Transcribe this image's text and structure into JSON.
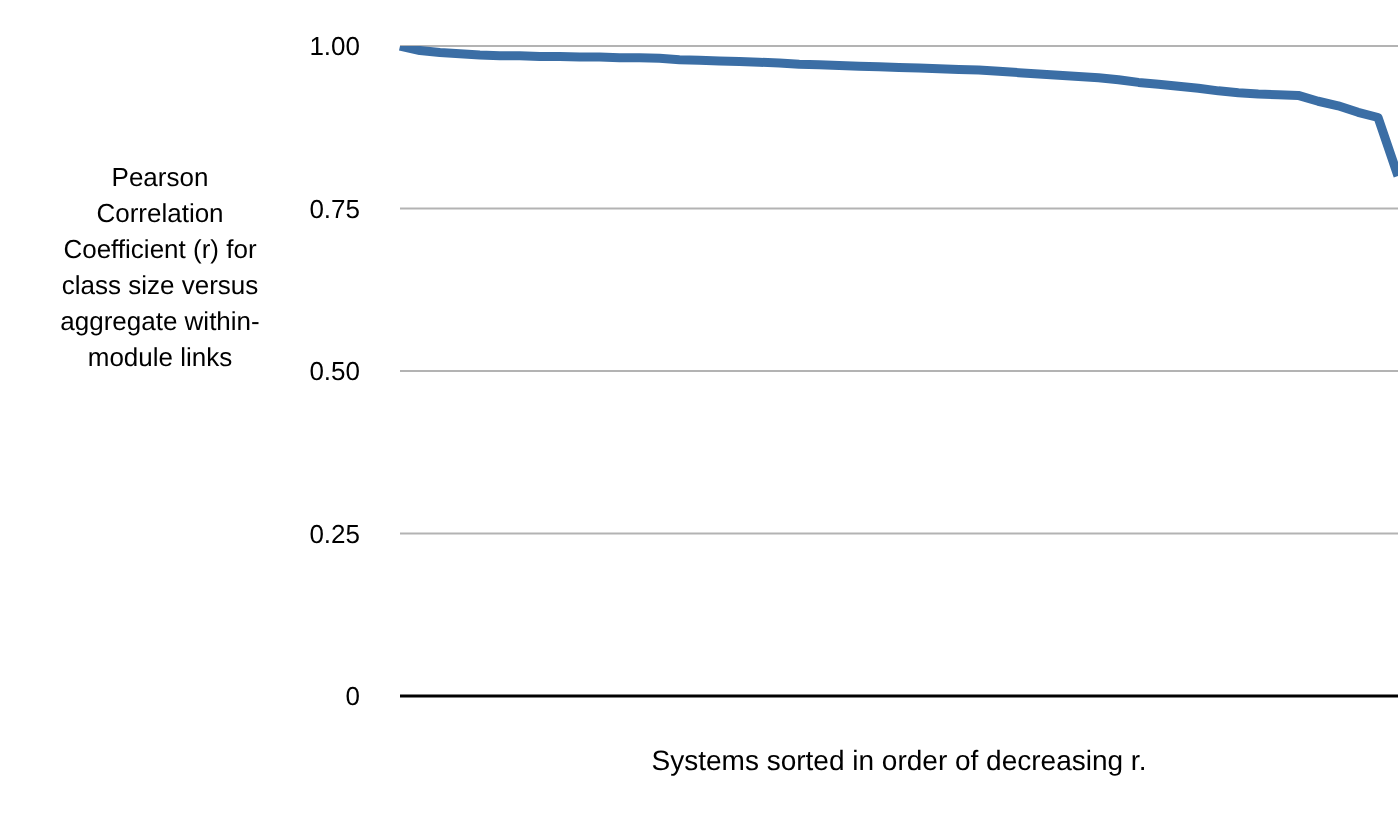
{
  "chart_data": {
    "type": "line",
    "ylabel": "Pearson Correlation Coefficient (r) for class size versus aggregate within-module links",
    "xlabel": "Systems sorted in order of decreasing r.",
    "categories": [
      null,
      null,
      null,
      null,
      null,
      null,
      null,
      null,
      null,
      null,
      null,
      null,
      null,
      null,
      null,
      null,
      null,
      null,
      null,
      null,
      null,
      null,
      null,
      null,
      null,
      null,
      null,
      null,
      null,
      null,
      null,
      null,
      null,
      null,
      null,
      null,
      null,
      null,
      null,
      null,
      null,
      null,
      null,
      null,
      null,
      null,
      null,
      null,
      null,
      null,
      null
    ],
    "series": [
      {
        "color": "#3b6ea5",
        "values": [
          1.0,
          0.993,
          0.99,
          0.988,
          0.986,
          0.985,
          0.985,
          0.984,
          0.984,
          0.983,
          0.983,
          0.982,
          0.982,
          0.981,
          0.979,
          0.978,
          0.977,
          0.976,
          0.975,
          0.974,
          0.972,
          0.971,
          0.97,
          0.969,
          0.968,
          0.967,
          0.966,
          0.965,
          0.964,
          0.963,
          0.961,
          0.959,
          0.957,
          0.955,
          0.953,
          0.951,
          0.948,
          0.944,
          0.941,
          0.938,
          0.935,
          0.931,
          0.928,
          0.926,
          0.925,
          0.924,
          0.915,
          0.908,
          0.898,
          0.89,
          0.8
        ]
      }
    ],
    "ylim": [
      0,
      1
    ],
    "yticks": [
      0,
      0.25,
      {
        "value": 0.5,
        "label": "0.50"
      },
      0.75,
      {
        "value": 1,
        "label": "1.00"
      }
    ],
    "grid": "y",
    "tick_labels": "y"
  }
}
